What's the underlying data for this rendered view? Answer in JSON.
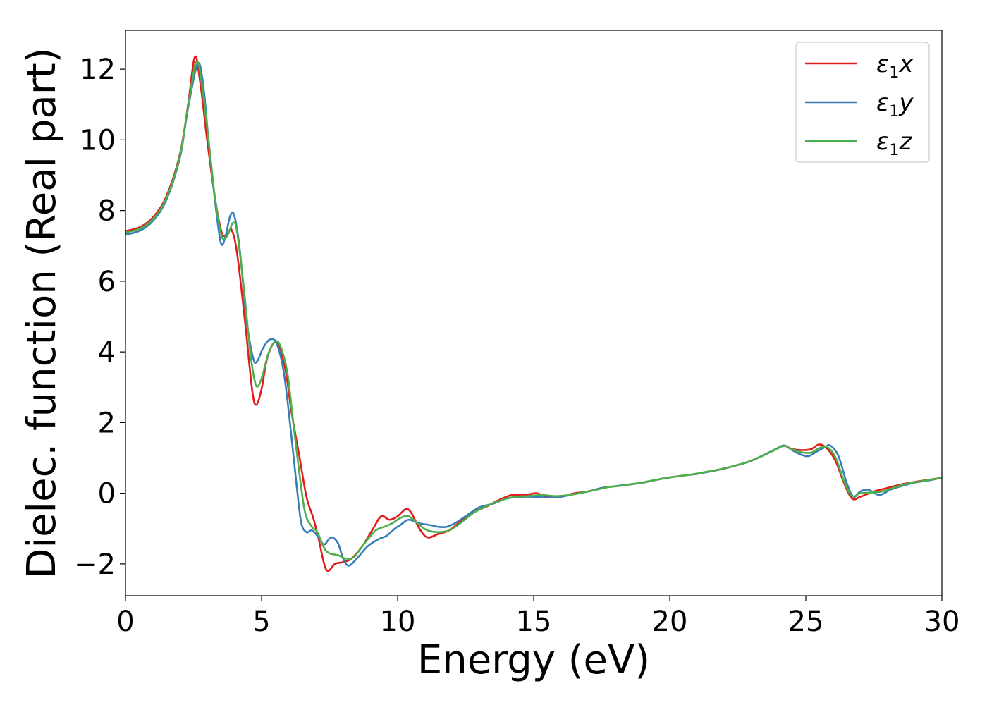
{
  "chart_data": {
    "type": "line",
    "title": "",
    "xlabel": "Energy (eV)",
    "ylabel": "Dielec. function (Real part)",
    "xlim": [
      0,
      30
    ],
    "ylim": [
      -2.9,
      13.1
    ],
    "xticks": [
      0,
      5,
      10,
      15,
      20,
      25,
      30
    ],
    "xtick_labels": [
      "0",
      "5",
      "10",
      "15",
      "20",
      "25",
      "30"
    ],
    "yticks": [
      -2,
      0,
      2,
      4,
      6,
      8,
      10,
      12
    ],
    "ytick_labels": [
      "−2",
      "0",
      "2",
      "4",
      "6",
      "8",
      "10",
      "12"
    ],
    "grid": false,
    "legend": {
      "position": "top-right",
      "entries": [
        {
          "base": "ε",
          "sub": "1",
          "suffix": "x",
          "color": "#e41a1c"
        },
        {
          "base": "ε",
          "sub": "1",
          "suffix": "y",
          "color": "#377eb8"
        },
        {
          "base": "ε",
          "sub": "1",
          "suffix": "z",
          "color": "#4daf4a"
        }
      ]
    },
    "series": [
      {
        "name": "ε1x",
        "color": "#e41a1c",
        "points": [
          [
            0,
            7.42
          ],
          [
            0.5,
            7.52
          ],
          [
            1.0,
            7.8
          ],
          [
            1.5,
            8.4
          ],
          [
            2.0,
            9.6
          ],
          [
            2.3,
            11.0
          ],
          [
            2.55,
            12.35
          ],
          [
            2.75,
            11.6
          ],
          [
            3.0,
            10.0
          ],
          [
            3.3,
            8.3
          ],
          [
            3.55,
            7.35
          ],
          [
            3.75,
            7.35
          ],
          [
            3.9,
            7.45
          ],
          [
            4.1,
            6.8
          ],
          [
            4.4,
            4.8
          ],
          [
            4.65,
            2.95
          ],
          [
            4.8,
            2.5
          ],
          [
            5.0,
            2.95
          ],
          [
            5.2,
            3.8
          ],
          [
            5.45,
            4.25
          ],
          [
            5.65,
            4.15
          ],
          [
            5.9,
            3.4
          ],
          [
            6.1,
            2.3
          ],
          [
            6.4,
            1.0
          ],
          [
            6.65,
            -0.1
          ],
          [
            6.9,
            -0.7
          ],
          [
            7.1,
            -1.3
          ],
          [
            7.3,
            -2.0
          ],
          [
            7.45,
            -2.2
          ],
          [
            7.7,
            -2.0
          ],
          [
            8.0,
            -1.95
          ],
          [
            8.3,
            -1.85
          ],
          [
            8.7,
            -1.5
          ],
          [
            9.1,
            -1.0
          ],
          [
            9.4,
            -0.65
          ],
          [
            9.7,
            -0.75
          ],
          [
            10.0,
            -0.65
          ],
          [
            10.3,
            -0.45
          ],
          [
            10.5,
            -0.55
          ],
          [
            10.8,
            -1.0
          ],
          [
            11.1,
            -1.25
          ],
          [
            11.5,
            -1.15
          ],
          [
            11.9,
            -1.05
          ],
          [
            12.3,
            -0.8
          ],
          [
            12.7,
            -0.55
          ],
          [
            13.2,
            -0.4
          ],
          [
            13.7,
            -0.2
          ],
          [
            14.2,
            -0.05
          ],
          [
            14.7,
            -0.05
          ],
          [
            15.1,
            0.0
          ],
          [
            15.5,
            -0.1
          ],
          [
            16.0,
            -0.1
          ],
          [
            16.5,
            0.0
          ],
          [
            17.0,
            0.05
          ],
          [
            17.5,
            0.15
          ],
          [
            18.0,
            0.2
          ],
          [
            18.5,
            0.25
          ],
          [
            19.0,
            0.3
          ],
          [
            19.5,
            0.38
          ],
          [
            20.0,
            0.45
          ],
          [
            20.5,
            0.5
          ],
          [
            21.0,
            0.55
          ],
          [
            21.5,
            0.62
          ],
          [
            22.0,
            0.7
          ],
          [
            22.5,
            0.8
          ],
          [
            23.0,
            0.92
          ],
          [
            23.5,
            1.1
          ],
          [
            23.9,
            1.25
          ],
          [
            24.2,
            1.35
          ],
          [
            24.5,
            1.25
          ],
          [
            24.9,
            1.22
          ],
          [
            25.2,
            1.25
          ],
          [
            25.5,
            1.38
          ],
          [
            25.8,
            1.25
          ],
          [
            26.1,
            0.9
          ],
          [
            26.4,
            0.3
          ],
          [
            26.7,
            -0.15
          ],
          [
            27.0,
            -0.1
          ],
          [
            27.5,
            0.05
          ],
          [
            28.0,
            0.15
          ],
          [
            28.5,
            0.25
          ],
          [
            29.0,
            0.32
          ],
          [
            29.5,
            0.38
          ],
          [
            30.0,
            0.44
          ]
        ]
      },
      {
        "name": "ε1y",
        "color": "#377eb8",
        "points": [
          [
            0,
            7.32
          ],
          [
            0.5,
            7.42
          ],
          [
            1.0,
            7.7
          ],
          [
            1.5,
            8.3
          ],
          [
            2.0,
            9.5
          ],
          [
            2.3,
            10.9
          ],
          [
            2.65,
            12.15
          ],
          [
            2.85,
            11.6
          ],
          [
            3.05,
            10.0
          ],
          [
            3.3,
            8.2
          ],
          [
            3.5,
            7.1
          ],
          [
            3.65,
            7.2
          ],
          [
            3.85,
            7.85
          ],
          [
            4.0,
            7.85
          ],
          [
            4.2,
            6.9
          ],
          [
            4.45,
            4.9
          ],
          [
            4.7,
            3.8
          ],
          [
            4.85,
            3.75
          ],
          [
            5.05,
            4.1
          ],
          [
            5.3,
            4.35
          ],
          [
            5.55,
            4.25
          ],
          [
            5.8,
            3.5
          ],
          [
            6.0,
            2.3
          ],
          [
            6.25,
            0.5
          ],
          [
            6.45,
            -0.8
          ],
          [
            6.65,
            -1.1
          ],
          [
            6.85,
            -1.05
          ],
          [
            7.1,
            -1.25
          ],
          [
            7.3,
            -1.45
          ],
          [
            7.55,
            -1.25
          ],
          [
            7.8,
            -1.4
          ],
          [
            8.0,
            -1.85
          ],
          [
            8.2,
            -2.05
          ],
          [
            8.5,
            -1.85
          ],
          [
            8.9,
            -1.5
          ],
          [
            9.3,
            -1.3
          ],
          [
            9.6,
            -1.2
          ],
          [
            9.9,
            -1.0
          ],
          [
            10.1,
            -0.9
          ],
          [
            10.4,
            -0.75
          ],
          [
            10.8,
            -0.85
          ],
          [
            11.2,
            -0.9
          ],
          [
            11.5,
            -0.95
          ],
          [
            11.8,
            -0.95
          ],
          [
            12.1,
            -0.85
          ],
          [
            12.5,
            -0.65
          ],
          [
            13.0,
            -0.4
          ],
          [
            13.5,
            -0.3
          ],
          [
            14.0,
            -0.15
          ],
          [
            14.5,
            -0.1
          ],
          [
            15.0,
            -0.1
          ],
          [
            15.5,
            -0.12
          ],
          [
            16.0,
            -0.1
          ],
          [
            16.5,
            -0.02
          ],
          [
            17.0,
            0.05
          ],
          [
            17.5,
            0.15
          ],
          [
            18.0,
            0.2
          ],
          [
            18.5,
            0.25
          ],
          [
            19.0,
            0.3
          ],
          [
            19.5,
            0.38
          ],
          [
            20.0,
            0.45
          ],
          [
            20.5,
            0.5
          ],
          [
            21.0,
            0.55
          ],
          [
            21.5,
            0.62
          ],
          [
            22.0,
            0.7
          ],
          [
            22.5,
            0.8
          ],
          [
            23.0,
            0.92
          ],
          [
            23.5,
            1.1
          ],
          [
            23.9,
            1.25
          ],
          [
            24.2,
            1.35
          ],
          [
            24.5,
            1.22
          ],
          [
            24.8,
            1.1
          ],
          [
            25.1,
            1.05
          ],
          [
            25.4,
            1.18
          ],
          [
            25.7,
            1.3
          ],
          [
            25.9,
            1.35
          ],
          [
            26.2,
            1.05
          ],
          [
            26.5,
            0.3
          ],
          [
            26.75,
            -0.1
          ],
          [
            27.0,
            0.05
          ],
          [
            27.3,
            0.1
          ],
          [
            27.7,
            -0.05
          ],
          [
            28.1,
            0.1
          ],
          [
            28.5,
            0.2
          ],
          [
            29.0,
            0.3
          ],
          [
            29.5,
            0.36
          ],
          [
            30.0,
            0.44
          ]
        ]
      },
      {
        "name": "ε1z",
        "color": "#4daf4a",
        "points": [
          [
            0,
            7.38
          ],
          [
            0.5,
            7.48
          ],
          [
            1.0,
            7.75
          ],
          [
            1.5,
            8.35
          ],
          [
            2.0,
            9.55
          ],
          [
            2.3,
            10.95
          ],
          [
            2.6,
            12.2
          ],
          [
            2.8,
            11.6
          ],
          [
            3.05,
            10.0
          ],
          [
            3.3,
            8.3
          ],
          [
            3.55,
            7.25
          ],
          [
            3.75,
            7.3
          ],
          [
            3.95,
            7.65
          ],
          [
            4.1,
            7.4
          ],
          [
            4.35,
            5.8
          ],
          [
            4.6,
            3.9
          ],
          [
            4.8,
            3.05
          ],
          [
            5.0,
            3.25
          ],
          [
            5.25,
            3.95
          ],
          [
            5.5,
            4.3
          ],
          [
            5.7,
            4.15
          ],
          [
            5.95,
            3.4
          ],
          [
            6.15,
            2.1
          ],
          [
            6.4,
            0.5
          ],
          [
            6.6,
            -0.55
          ],
          [
            6.85,
            -0.95
          ],
          [
            7.05,
            -1.1
          ],
          [
            7.3,
            -1.55
          ],
          [
            7.5,
            -1.7
          ],
          [
            7.8,
            -1.75
          ],
          [
            8.1,
            -1.85
          ],
          [
            8.4,
            -1.8
          ],
          [
            8.8,
            -1.4
          ],
          [
            9.2,
            -1.05
          ],
          [
            9.5,
            -0.95
          ],
          [
            9.8,
            -0.85
          ],
          [
            10.1,
            -0.7
          ],
          [
            10.4,
            -0.65
          ],
          [
            10.8,
            -0.9
          ],
          [
            11.1,
            -1.05
          ],
          [
            11.5,
            -1.1
          ],
          [
            11.9,
            -1.05
          ],
          [
            12.3,
            -0.85
          ],
          [
            12.8,
            -0.55
          ],
          [
            13.3,
            -0.35
          ],
          [
            13.8,
            -0.2
          ],
          [
            14.3,
            -0.1
          ],
          [
            14.8,
            -0.08
          ],
          [
            15.3,
            -0.05
          ],
          [
            15.8,
            -0.08
          ],
          [
            16.3,
            -0.05
          ],
          [
            16.8,
            0.02
          ],
          [
            17.3,
            0.1
          ],
          [
            17.8,
            0.18
          ],
          [
            18.3,
            0.22
          ],
          [
            18.8,
            0.28
          ],
          [
            19.3,
            0.35
          ],
          [
            19.8,
            0.42
          ],
          [
            20.3,
            0.48
          ],
          [
            20.8,
            0.53
          ],
          [
            21.3,
            0.6
          ],
          [
            21.8,
            0.67
          ],
          [
            22.3,
            0.76
          ],
          [
            22.8,
            0.87
          ],
          [
            23.3,
            1.02
          ],
          [
            23.8,
            1.2
          ],
          [
            24.2,
            1.34
          ],
          [
            24.5,
            1.24
          ],
          [
            24.9,
            1.15
          ],
          [
            25.2,
            1.15
          ],
          [
            25.5,
            1.28
          ],
          [
            25.8,
            1.3
          ],
          [
            26.1,
            1.0
          ],
          [
            26.4,
            0.35
          ],
          [
            26.7,
            -0.08
          ],
          [
            27.0,
            0.0
          ],
          [
            27.4,
            0.02
          ],
          [
            27.8,
            0.05
          ],
          [
            28.2,
            0.15
          ],
          [
            28.6,
            0.25
          ],
          [
            29.0,
            0.31
          ],
          [
            29.5,
            0.37
          ],
          [
            30.0,
            0.44
          ]
        ]
      }
    ]
  }
}
